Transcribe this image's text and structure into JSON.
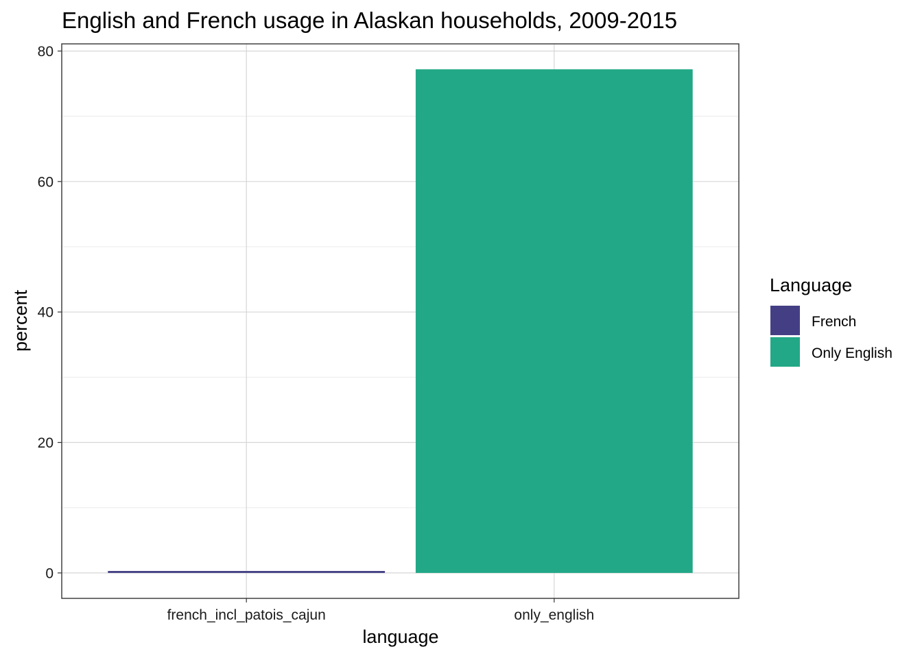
{
  "chart_data": {
    "type": "bar",
    "title": "English and French usage in Alaskan households, 2009-2015",
    "xlabel": "language",
    "ylabel": "percent",
    "categories": [
      "french_incl_patois_cajun",
      "only_english"
    ],
    "values": [
      0.3,
      77.2
    ],
    "fill_keys": [
      "French",
      "Only English"
    ],
    "yticks": [
      0,
      20,
      40,
      60,
      80
    ],
    "ylim": [
      -3.9,
      81.1
    ],
    "grid": true,
    "legend": {
      "title": "Language",
      "position": "right",
      "entries": [
        {
          "label": "French",
          "color": "#443F85"
        },
        {
          "label": "Only English",
          "color": "#22A887"
        }
      ]
    }
  }
}
